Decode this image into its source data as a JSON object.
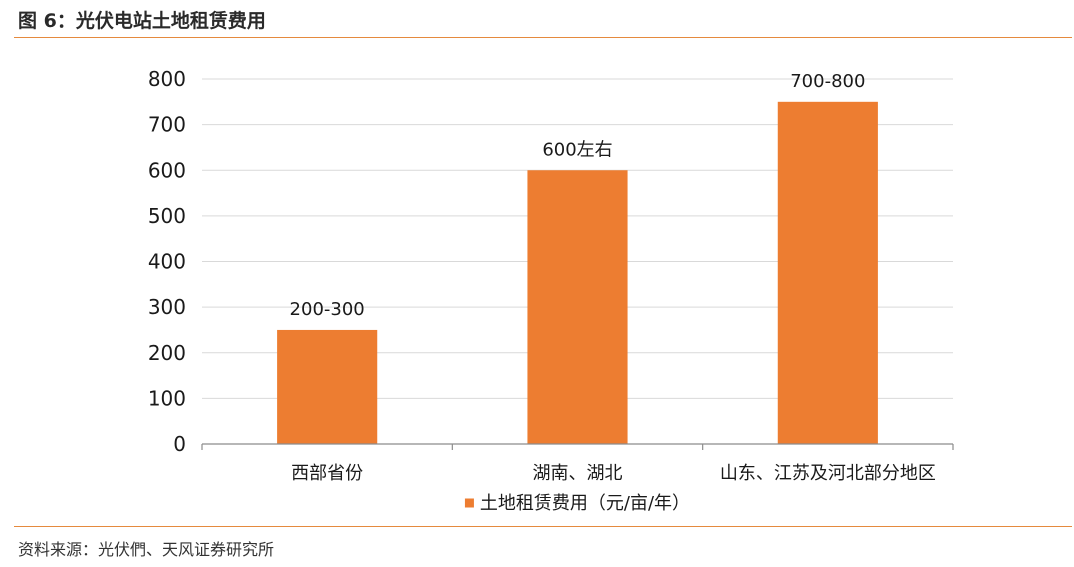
{
  "figure": {
    "title": "图 6：光伏电站土地租赁费用",
    "source": "资料来源：光伏們、天风证券研究所"
  },
  "colors": {
    "bar": "#ed7d31",
    "accent_rule": "#e58a3e",
    "grid": "#d9d9d9",
    "axis": "#8c8c8c"
  },
  "chart_data": {
    "type": "bar",
    "title": "",
    "xlabel": "",
    "ylabel": "",
    "categories": [
      "西部省份",
      "湖南、湖北",
      "山东、江苏及河北部分地区"
    ],
    "series": [
      {
        "name": "土地租赁费用（元/亩/年）",
        "values": [
          250,
          600,
          750
        ],
        "data_labels": [
          "200-300",
          "600左右",
          "700-800"
        ]
      }
    ],
    "ylim": [
      0,
      800
    ],
    "yticks": [
      0,
      100,
      200,
      300,
      400,
      500,
      600,
      700,
      800
    ],
    "grid": true,
    "legend_position": "bottom-center"
  }
}
